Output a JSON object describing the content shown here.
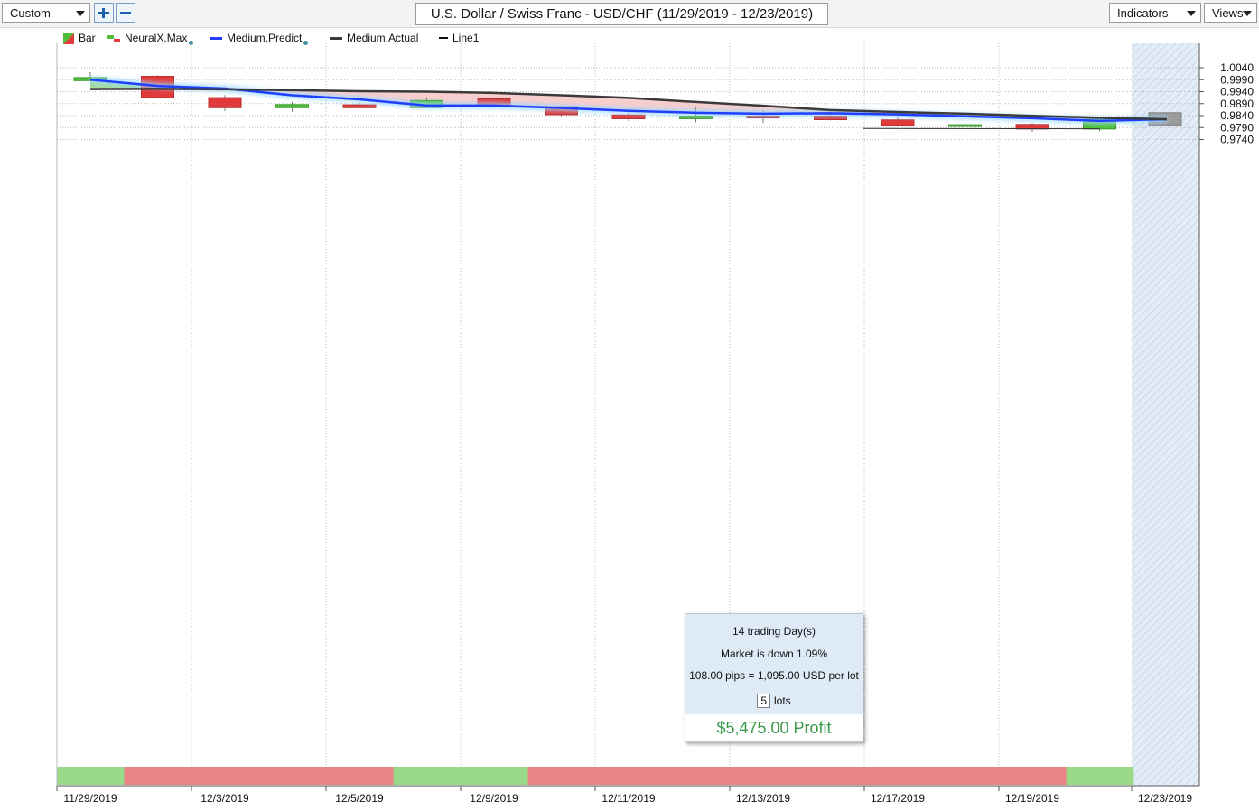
{
  "toolbar": {
    "custom_label": "Custom",
    "chart_title": "U.S. Dollar / Swiss Franc - USD/CHF (11/29/2019 - 12/23/2019)",
    "indicators_label": "Indicators",
    "views_label": "Views"
  },
  "legend": {
    "bar": "Bar",
    "neuralx": "NeuralX.Max",
    "predict": "Medium.Predict",
    "actual": "Medium.Actual",
    "line1": "Line1"
  },
  "tooltip": {
    "days": "14 trading Day(s)",
    "market": "Market is down 1.09%",
    "pips": "108.00 pips = 1,095.00 USD per lot",
    "lots_value": "5",
    "lots_label": "lots",
    "profit": "$5,475.00 Profit"
  },
  "colors": {
    "up": "#4fbf3a",
    "down": "#e03a3a",
    "predict": "#1f3fff",
    "actual": "#3a3a3a",
    "fill_down": "#f6c9c9",
    "fill_up": "#a6dd9a",
    "strip_up": "#9bd98a",
    "strip_down": "#ea8484",
    "forecast_bar": "#9c9c9c"
  },
  "chart_data": {
    "type": "candlestick",
    "title": "U.S. Dollar / Swiss Franc - USD/CHF (11/29/2019 - 12/23/2019)",
    "y_axis": {
      "min": 0.974,
      "max": 1.004,
      "ticks": [
        "1.0040",
        "0.9990",
        "0.9940",
        "0.9890",
        "0.9840",
        "0.9790",
        "0.9740"
      ],
      "side": "right"
    },
    "x_tick_labels": [
      "11/29/2019",
      "12/3/2019",
      "12/5/2019",
      "12/9/2019",
      "12/11/2019",
      "12/13/2019",
      "12/17/2019",
      "12/19/2019",
      "12/23/2019"
    ],
    "candles": [
      {
        "date": "11/29/2019",
        "open": 0.9986,
        "high": 1.0021,
        "low": 0.9986,
        "close": 0.9999
      },
      {
        "date": "12/2/2019",
        "open": 1.0004,
        "high": 1.0008,
        "low": 0.9914,
        "close": 0.9915
      },
      {
        "date": "12/3/2019",
        "open": 0.9915,
        "high": 0.9926,
        "low": 0.9859,
        "close": 0.9873
      },
      {
        "date": "12/4/2019",
        "open": 0.9873,
        "high": 0.9898,
        "low": 0.9856,
        "close": 0.9886
      },
      {
        "date": "12/5/2019",
        "open": 0.9885,
        "high": 0.9894,
        "low": 0.9872,
        "close": 0.9873
      },
      {
        "date": "12/6/2019",
        "open": 0.9873,
        "high": 0.9917,
        "low": 0.9873,
        "close": 0.9903
      },
      {
        "date": "12/9/2019",
        "open": 0.991,
        "high": 0.991,
        "low": 0.9876,
        "close": 0.9878
      },
      {
        "date": "12/10/2019",
        "open": 0.9877,
        "high": 0.9881,
        "low": 0.9835,
        "close": 0.9844
      },
      {
        "date": "12/11/2019",
        "open": 0.9843,
        "high": 0.9863,
        "low": 0.9816,
        "close": 0.9827
      },
      {
        "date": "12/12/2019",
        "open": 0.9827,
        "high": 0.9877,
        "low": 0.9812,
        "close": 0.9838
      },
      {
        "date": "12/13/2019",
        "open": 0.9838,
        "high": 0.9862,
        "low": 0.9809,
        "close": 0.9833
      },
      {
        "date": "12/16/2019",
        "open": 0.9838,
        "high": 0.9848,
        "low": 0.982,
        "close": 0.9823
      },
      {
        "date": "12/17/2019",
        "open": 0.9822,
        "high": 0.9843,
        "low": 0.9799,
        "close": 0.9799
      },
      {
        "date": "12/18/2019",
        "open": 0.9799,
        "high": 0.982,
        "low": 0.9796,
        "close": 0.9802
      },
      {
        "date": "12/19/2019",
        "open": 0.9803,
        "high": 0.9808,
        "low": 0.9771,
        "close": 0.9784
      },
      {
        "date": "12/20/2019",
        "open": 0.9784,
        "high": 0.9832,
        "low": 0.9775,
        "close": 0.9825
      }
    ],
    "forecast_bar": {
      "date": "12/23/2019",
      "top": 0.9852,
      "bottom": 0.9801
    },
    "series": [
      {
        "name": "Medium.Predict",
        "values": [
          0.999,
          0.9964,
          0.9953,
          0.9925,
          0.9908,
          0.9882,
          0.9882,
          0.9872,
          0.986,
          0.9852,
          0.9848,
          0.985,
          0.9845,
          0.9837,
          0.9829,
          0.9818,
          0.9825
        ]
      },
      {
        "name": "Medium.Actual",
        "values": [
          0.9951,
          0.9952,
          0.995,
          0.9946,
          0.9942,
          0.994,
          0.9935,
          0.9925,
          0.9914,
          0.9897,
          0.9881,
          0.9863,
          0.9855,
          0.9848,
          0.9839,
          0.9831,
          0.9825
        ]
      }
    ],
    "line1": {
      "from": 0.9786,
      "to": 0.9785
    },
    "strip": [
      "up",
      "down",
      "down",
      "down",
      "down",
      "up",
      "up",
      "down",
      "down",
      "down",
      "down",
      "down",
      "down",
      "down",
      "down",
      "up"
    ],
    "legend_position": "top-left",
    "grid": true
  }
}
